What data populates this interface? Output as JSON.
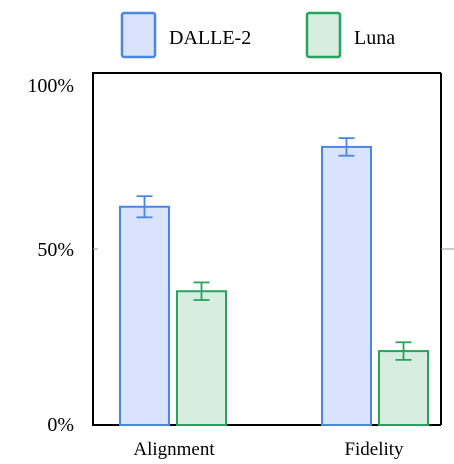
{
  "chart_data": {
    "type": "bar",
    "categories": [
      "Alignment",
      "Fidelity"
    ],
    "series": [
      {
        "name": "DALLE-2",
        "values": [
          62,
          79
        ],
        "error": [
          3,
          2.5
        ],
        "fill": "#d9e3fb",
        "stroke": "#4a87e0"
      },
      {
        "name": "Luna",
        "values": [
          38,
          21
        ],
        "error": [
          2.5,
          2.5
        ],
        "fill": "#d7ede0",
        "stroke": "#27a35e"
      }
    ],
    "y_ticks": [
      "0%",
      "50%",
      "100%"
    ],
    "ylim": [
      0,
      100
    ],
    "legend_position": "top-center",
    "grid": false
  }
}
